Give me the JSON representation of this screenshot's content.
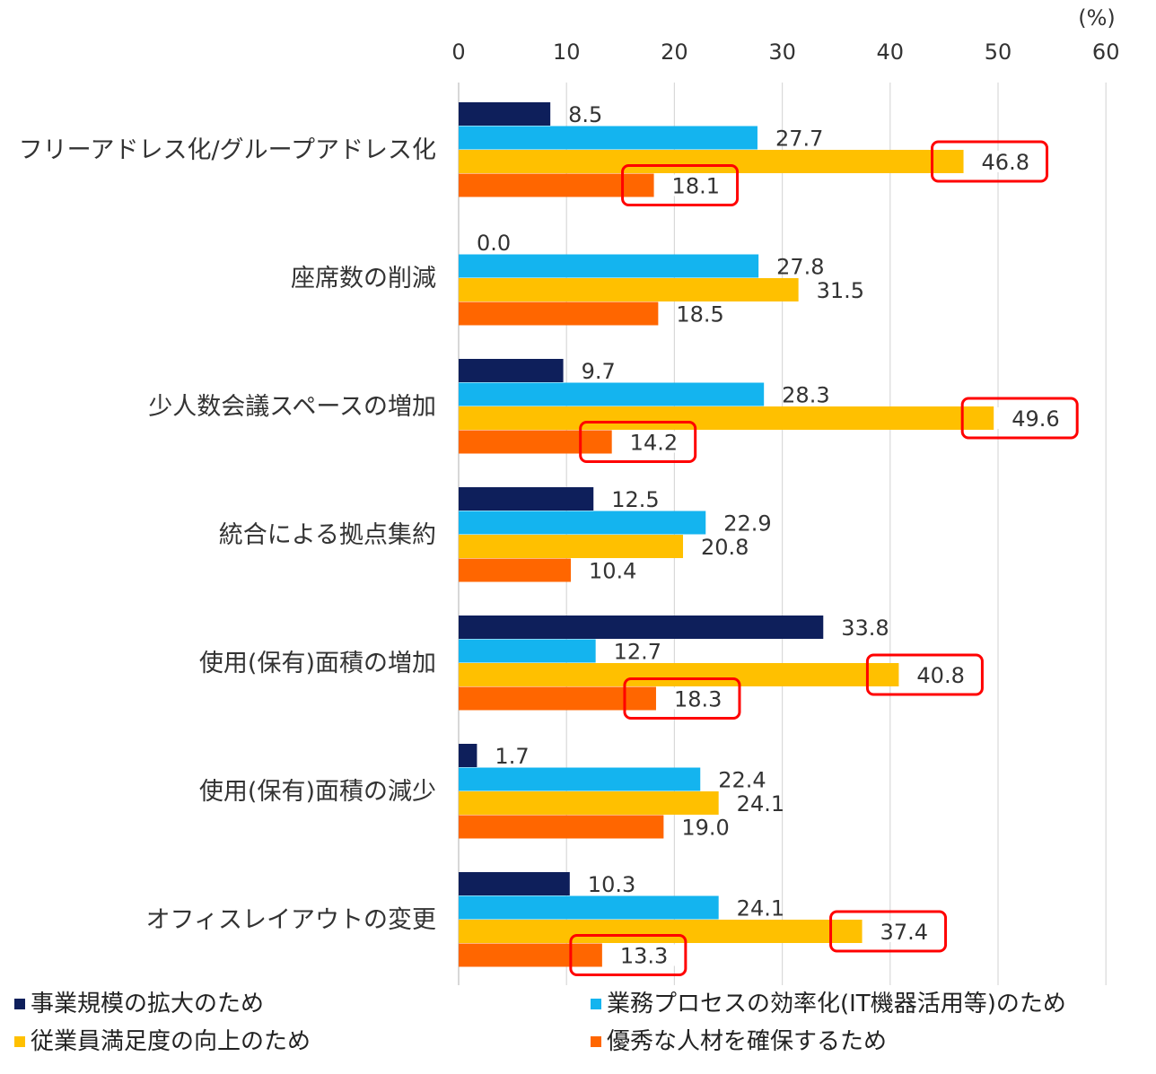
{
  "chart_data": {
    "type": "bar",
    "orientation": "horizontal",
    "unit": "(%)",
    "xlim": [
      0,
      60
    ],
    "ticks": [
      0,
      10,
      20,
      30,
      40,
      50,
      60
    ],
    "tick_labels": [
      "0",
      "10",
      "20",
      "30",
      "40",
      "50",
      "60"
    ],
    "grid": true,
    "legend_position": "bottom",
    "categories": [
      "フリーアドレス化/グループアドレス化",
      "座席数の削減",
      "少人数会議スペースの増加",
      "統合による拠点集約",
      "使用(保有)面積の増加",
      "使用(保有)面積の減少",
      "オフィスレイアウトの変更"
    ],
    "series": [
      {
        "name": "事業規模の拡大のため",
        "color": "#0e1f5b",
        "values": [
          8.5,
          0.0,
          9.7,
          12.5,
          33.8,
          1.7,
          10.3
        ],
        "labels": [
          "8.5",
          "0.0",
          "9.7",
          "12.5",
          "33.8",
          "1.7",
          "10.3"
        ]
      },
      {
        "name": "業務プロセスの効率化(IT機器活用等)のため",
        "color": "#14b4ef",
        "values": [
          27.7,
          27.8,
          28.3,
          22.9,
          12.7,
          22.4,
          24.1
        ],
        "labels": [
          "27.7",
          "27.8",
          "28.3",
          "22.9",
          "12.7",
          "22.4",
          "24.1"
        ]
      },
      {
        "name": "従業員満足度の向上のため",
        "color": "#ffc000",
        "values": [
          46.8,
          31.5,
          49.6,
          20.8,
          40.8,
          24.1,
          37.4
        ],
        "labels": [
          "46.8",
          "31.5",
          "49.6",
          "20.8",
          "40.8",
          "24.1",
          "37.4"
        ]
      },
      {
        "name": "優秀な人材を確保するため",
        "color": "#ff6600",
        "values": [
          18.1,
          18.5,
          14.2,
          10.4,
          18.3,
          19.0,
          13.3
        ],
        "labels": [
          "18.1",
          "18.5",
          "14.2",
          "10.4",
          "18.3",
          "19.0",
          "13.3"
        ]
      }
    ],
    "highlighted": [
      {
        "category_index": 0,
        "series_index": 2
      },
      {
        "category_index": 0,
        "series_index": 3
      },
      {
        "category_index": 2,
        "series_index": 2
      },
      {
        "category_index": 2,
        "series_index": 3
      },
      {
        "category_index": 4,
        "series_index": 2
      },
      {
        "category_index": 4,
        "series_index": 3
      },
      {
        "category_index": 6,
        "series_index": 2
      },
      {
        "category_index": 6,
        "series_index": 3
      }
    ],
    "highlight_color": "#ff0000"
  }
}
